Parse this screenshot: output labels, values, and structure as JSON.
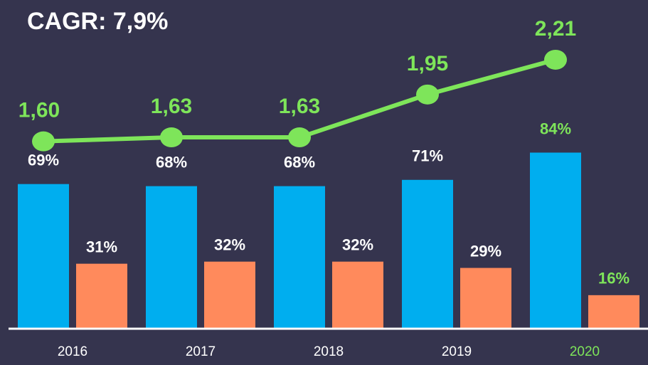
{
  "chart_data": {
    "type": "bar",
    "title": "CAGR: 7,9%",
    "categories": [
      "2016",
      "2017",
      "2018",
      "2019",
      "2020"
    ],
    "series": [
      {
        "color": "#00aeef",
        "values": [
          69,
          68,
          68,
          71,
          84
        ],
        "value_labels": [
          "69%",
          "68%",
          "68%",
          "71%",
          "84%"
        ]
      },
      {
        "color": "#ff8a5c",
        "values": [
          31,
          32,
          32,
          29,
          16
        ],
        "value_labels": [
          "31%",
          "32%",
          "32%",
          "29%",
          "16%"
        ]
      },
      {
        "type": "line",
        "axis": "y2",
        "color": "#7ee55a",
        "values": [
          1.6,
          1.63,
          1.63,
          1.95,
          2.21
        ],
        "value_labels": [
          "1,60",
          "1,63",
          "1,63",
          "1,95",
          "2,21"
        ]
      }
    ],
    "ylim": [
      0,
      150
    ],
    "y2lim": [
      0.2,
      2.55
    ],
    "highlight_color": "#7ee55a",
    "background": "#35344e"
  }
}
